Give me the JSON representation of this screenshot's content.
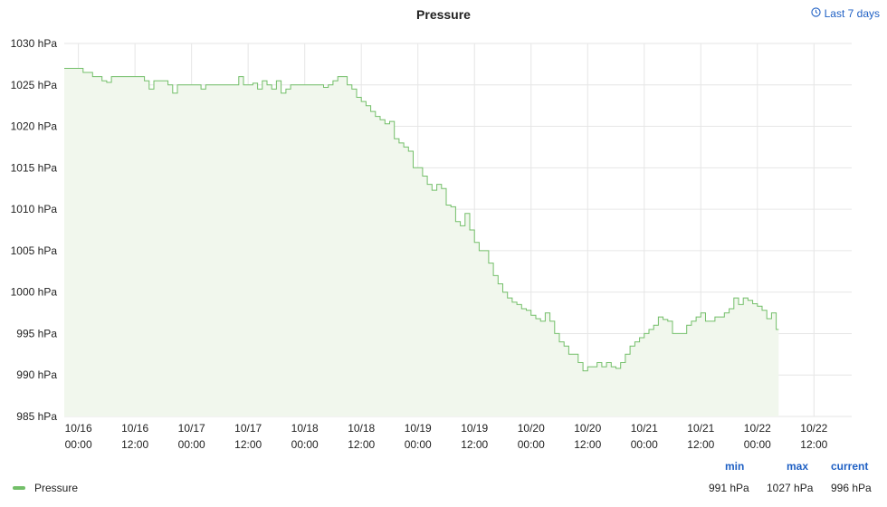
{
  "panel": {
    "title": "Pressure",
    "time_range_label": "Last 7 days"
  },
  "legend": {
    "series_name": "Pressure",
    "headers": {
      "min": "min",
      "max": "max",
      "current": "current"
    },
    "values": {
      "min": "991 hPa",
      "max": "1027 hPa",
      "current": "996 hPa"
    }
  },
  "chart_data": {
    "type": "area",
    "title": "Pressure",
    "ylim": [
      985,
      1030
    ],
    "yticks": [
      "985 hPa",
      "990 hPa",
      "995 hPa",
      "1000 hPa",
      "1005 hPa",
      "1010 hPa",
      "1015 hPa",
      "1020 hPa",
      "1025 hPa",
      "1030 hPa"
    ],
    "ytick_values": [
      985,
      990,
      995,
      1000,
      1005,
      1010,
      1015,
      1020,
      1025,
      1030
    ],
    "xlim_hours": [
      -3,
      164
    ],
    "xticks": [
      {
        "hour": 0,
        "date": "10/16",
        "time": "00:00"
      },
      {
        "hour": 12,
        "date": "10/16",
        "time": "12:00"
      },
      {
        "hour": 24,
        "date": "10/17",
        "time": "00:00"
      },
      {
        "hour": 36,
        "date": "10/17",
        "time": "12:00"
      },
      {
        "hour": 48,
        "date": "10/18",
        "time": "00:00"
      },
      {
        "hour": 60,
        "date": "10/18",
        "time": "12:00"
      },
      {
        "hour": 72,
        "date": "10/19",
        "time": "00:00"
      },
      {
        "hour": 84,
        "date": "10/19",
        "time": "12:00"
      },
      {
        "hour": 96,
        "date": "10/20",
        "time": "00:00"
      },
      {
        "hour": 108,
        "date": "10/20",
        "time": "12:00"
      },
      {
        "hour": 120,
        "date": "10/21",
        "time": "00:00"
      },
      {
        "hour": 132,
        "date": "10/21",
        "time": "12:00"
      },
      {
        "hour": 144,
        "date": "10/22",
        "time": "00:00"
      },
      {
        "hour": 156,
        "date": "10/22",
        "time": "12:00"
      }
    ],
    "grid": true,
    "series": [
      {
        "name": "Pressure",
        "color": "#73bf69",
        "step": true,
        "points": [
          [
            -3,
            1027
          ],
          [
            1,
            1026.5
          ],
          [
            3,
            1026
          ],
          [
            5,
            1025.5
          ],
          [
            6,
            1025.3
          ],
          [
            7,
            1026
          ],
          [
            11,
            1026
          ],
          [
            14,
            1025.5
          ],
          [
            15,
            1024.5
          ],
          [
            16,
            1025.5
          ],
          [
            19,
            1025
          ],
          [
            20,
            1024
          ],
          [
            21,
            1025
          ],
          [
            25,
            1025
          ],
          [
            26,
            1024.5
          ],
          [
            27,
            1025
          ],
          [
            33,
            1025
          ],
          [
            34,
            1026
          ],
          [
            35,
            1025
          ],
          [
            37,
            1025.2
          ],
          [
            38,
            1024.5
          ],
          [
            39,
            1025.5
          ],
          [
            40,
            1025
          ],
          [
            41,
            1024.5
          ],
          [
            42,
            1025.5
          ],
          [
            43,
            1024
          ],
          [
            44,
            1024.5
          ],
          [
            45,
            1025
          ],
          [
            51,
            1025
          ],
          [
            52,
            1024.7
          ],
          [
            53,
            1025
          ],
          [
            54,
            1025.5
          ],
          [
            55,
            1026
          ],
          [
            57,
            1025
          ],
          [
            58,
            1024.5
          ],
          [
            59,
            1023.5
          ],
          [
            60,
            1023
          ],
          [
            61,
            1022.5
          ],
          [
            62,
            1021.8
          ],
          [
            63,
            1021.2
          ],
          [
            64,
            1020.8
          ],
          [
            65,
            1020.3
          ],
          [
            66,
            1020.6
          ],
          [
            67,
            1018.5
          ],
          [
            68,
            1018
          ],
          [
            69,
            1017.5
          ],
          [
            70,
            1017
          ],
          [
            71,
            1015
          ],
          [
            73,
            1014
          ],
          [
            74,
            1013
          ],
          [
            75,
            1012.3
          ],
          [
            76,
            1013
          ],
          [
            77,
            1012.5
          ],
          [
            78,
            1010.5
          ],
          [
            79,
            1010.3
          ],
          [
            80,
            1008.5
          ],
          [
            81,
            1008
          ],
          [
            82,
            1009.5
          ],
          [
            83,
            1007.5
          ],
          [
            84,
            1006
          ],
          [
            85,
            1005
          ],
          [
            87,
            1003.5
          ],
          [
            88,
            1002
          ],
          [
            89,
            1001
          ],
          [
            90,
            1000
          ],
          [
            91,
            999.3
          ],
          [
            92,
            998.8
          ],
          [
            93,
            998.5
          ],
          [
            94,
            998
          ],
          [
            95,
            997.8
          ],
          [
            96,
            997.2
          ],
          [
            97,
            996.8
          ],
          [
            98,
            996.5
          ],
          [
            99,
            997.5
          ],
          [
            100,
            996.5
          ],
          [
            101,
            995
          ],
          [
            102,
            994
          ],
          [
            103,
            993.5
          ],
          [
            104,
            992.5
          ],
          [
            106,
            991.5
          ],
          [
            107,
            990.5
          ],
          [
            108,
            991
          ],
          [
            109,
            991
          ],
          [
            110,
            991.5
          ],
          [
            111,
            991
          ],
          [
            112,
            991.5
          ],
          [
            113,
            991
          ],
          [
            114,
            990.8
          ],
          [
            115,
            991.5
          ],
          [
            116,
            992.5
          ],
          [
            117,
            993.5
          ],
          [
            118,
            994
          ],
          [
            119,
            994.5
          ],
          [
            120,
            995
          ],
          [
            121,
            995.5
          ],
          [
            122,
            996
          ],
          [
            123,
            997
          ],
          [
            124,
            996.7
          ],
          [
            125,
            996.5
          ],
          [
            126,
            995
          ],
          [
            129,
            996
          ],
          [
            130,
            996.5
          ],
          [
            131,
            997
          ],
          [
            132,
            997.5
          ],
          [
            133,
            996.5
          ],
          [
            135,
            997
          ],
          [
            137,
            997.5
          ],
          [
            138,
            998
          ],
          [
            139,
            999.3
          ],
          [
            140,
            998.5
          ],
          [
            141,
            999.3
          ],
          [
            142,
            999
          ],
          [
            143,
            998.6
          ],
          [
            144,
            998.3
          ],
          [
            145,
            997.8
          ],
          [
            146,
            996.8
          ],
          [
            147,
            997.5
          ],
          [
            148,
            995.5
          ],
          [
            148.5,
            995.5
          ]
        ]
      }
    ],
    "fill_color": "#f1f7ed",
    "line_color": "#73bf69"
  }
}
